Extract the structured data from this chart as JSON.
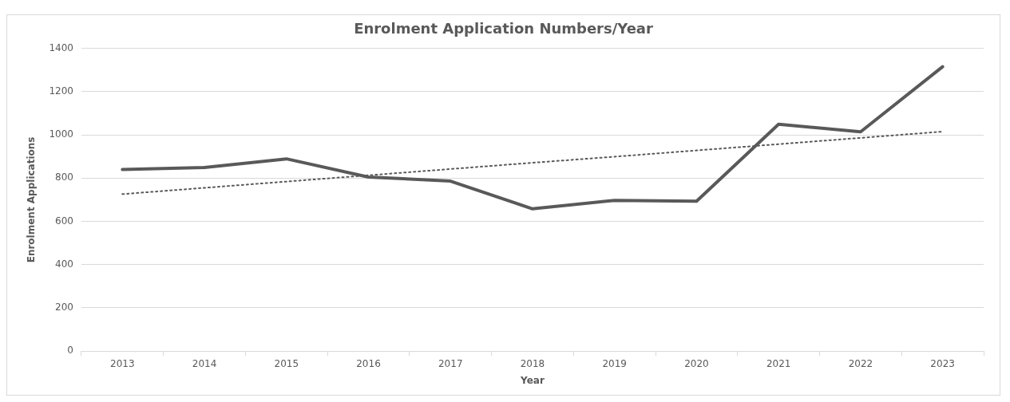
{
  "chart_data": {
    "type": "line",
    "title": "Enrolment Application Numbers/Year",
    "xlabel": "Year",
    "ylabel": "Enrolment Applications",
    "categories": [
      "2013",
      "2014",
      "2015",
      "2016",
      "2017",
      "2018",
      "2019",
      "2020",
      "2021",
      "2022",
      "2023"
    ],
    "series": [
      {
        "color": "#595959",
        "values": [
          840,
          849,
          889,
          805,
          786,
          658,
          697,
          693,
          1049,
          1014,
          1315
        ]
      },
      {
        "type": "line",
        "color": "#595959",
        "line_style": "dotted",
        "values": [
          726,
          755,
          784,
          813,
          842,
          871,
          899,
          928,
          957,
          986,
          1015
        ]
      }
    ],
    "ylim": [
      0,
      1400
    ],
    "yticks": [
      0,
      200,
      400,
      600,
      800,
      1000,
      1200,
      1400
    ],
    "grid": "y",
    "legend": false,
    "marker": "none",
    "line_style": "solid"
  }
}
